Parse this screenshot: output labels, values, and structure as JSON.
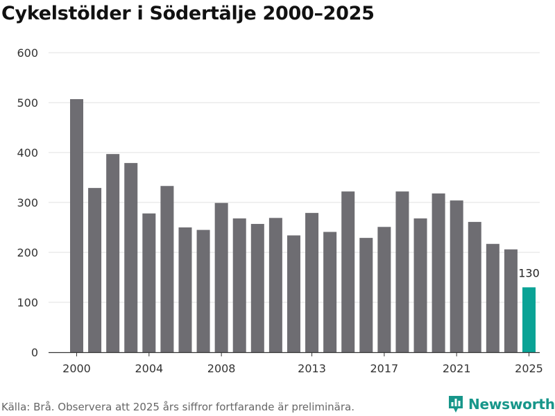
{
  "title": "Cykelstölder i Södertälje 2000–2025",
  "source": "Källa: Brå. Observera att 2025 års siffror fortfarande är preliminära.",
  "brand": {
    "name": "Newsworthy",
    "icon": "newsworthy-logo-icon"
  },
  "colors": {
    "bar": "#6e6d72",
    "highlight": "#0aa396",
    "grid": "#e1e1e1",
    "axis": "#333333",
    "brand": "#17968a"
  },
  "chart_data": {
    "type": "bar",
    "title": "Cykelstölder i Södertälje 2000–2025",
    "xlabel": "",
    "ylabel": "",
    "categories": [
      "2000",
      "2001",
      "2002",
      "2003",
      "2004",
      "2005",
      "2006",
      "2007",
      "2008",
      "2009",
      "2010",
      "2011",
      "2012",
      "2013",
      "2014",
      "2015",
      "2016",
      "2017",
      "2018",
      "2019",
      "2020",
      "2021",
      "2022",
      "2023",
      "2024",
      "2025"
    ],
    "values": [
      507,
      329,
      397,
      379,
      278,
      333,
      250,
      245,
      299,
      268,
      257,
      269,
      234,
      279,
      241,
      322,
      229,
      251,
      322,
      268,
      318,
      304,
      261,
      217,
      206,
      130
    ],
    "highlight_index": 25,
    "data_labels": [
      {
        "category": "2025",
        "text": "130"
      }
    ],
    "ylim": [
      0,
      600
    ],
    "yticks": [
      0,
      100,
      200,
      300,
      400,
      500,
      600
    ],
    "xticks": [
      "2000",
      "2004",
      "2008",
      "2013",
      "2017",
      "2021",
      "2025"
    ],
    "grid": true
  }
}
